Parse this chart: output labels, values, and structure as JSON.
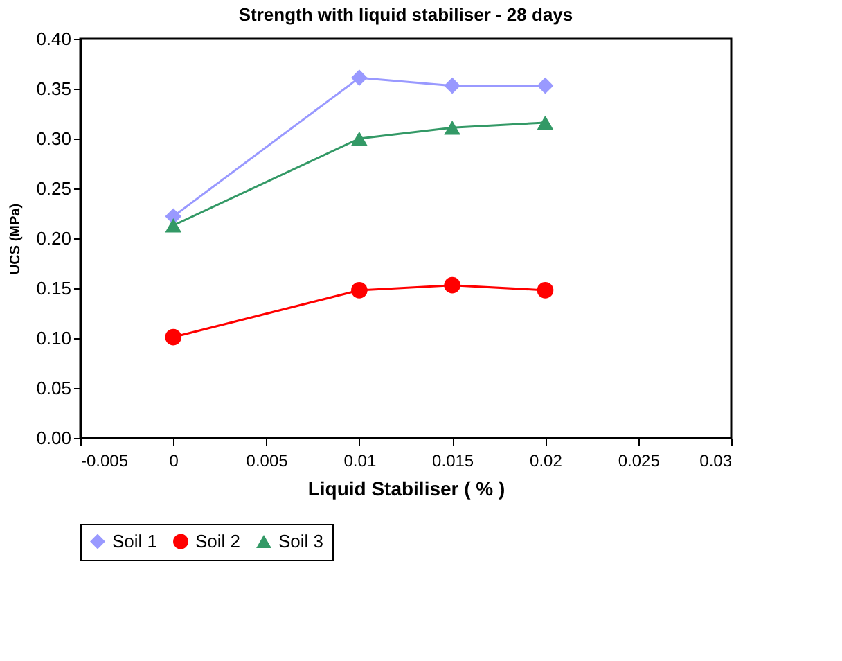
{
  "chart_data": {
    "type": "line",
    "title": "Strength with liquid stabiliser - 28 days",
    "xlabel": "Liquid Stabiliser ( % )",
    "ylabel": "UCS (MPa)",
    "x": [
      0,
      0.01,
      0.015,
      0.02
    ],
    "series": [
      {
        "name": "Soil 1",
        "color": "#9999ff",
        "marker": "diamond",
        "values": [
          0.222,
          0.361,
          0.353,
          0.353
        ]
      },
      {
        "name": "Soil 2",
        "color": "#ff0000",
        "marker": "circle",
        "values": [
          0.101,
          0.148,
          0.153,
          0.148
        ]
      },
      {
        "name": "Soil 3",
        "color": "#339966",
        "marker": "triangle",
        "values": [
          0.213,
          0.3,
          0.311,
          0.316
        ]
      }
    ],
    "xlim": [
      -0.005,
      0.03
    ],
    "xticks": [
      {
        "value": -0.005,
        "label": "-0.005"
      },
      0,
      0.005,
      0.01,
      0.015,
      0.02,
      0.025,
      0.03
    ],
    "ylim": [
      0,
      0.4
    ],
    "yticks": [
      {
        "value": 0,
        "label": "0.00"
      },
      {
        "value": 0.05,
        "label": "0.05"
      },
      {
        "value": 0.1,
        "label": "0.10"
      },
      {
        "value": 0.15,
        "label": "0.15"
      },
      {
        "value": 0.2,
        "label": "0.20"
      },
      {
        "value": 0.25,
        "label": "0.25"
      },
      {
        "value": 0.3,
        "label": "0.30"
      },
      {
        "value": 0.35,
        "label": "0.35"
      },
      {
        "value": 0.4,
        "label": "0.40"
      }
    ],
    "grid": false,
    "legend": "bottom",
    "line_style": "solid"
  }
}
